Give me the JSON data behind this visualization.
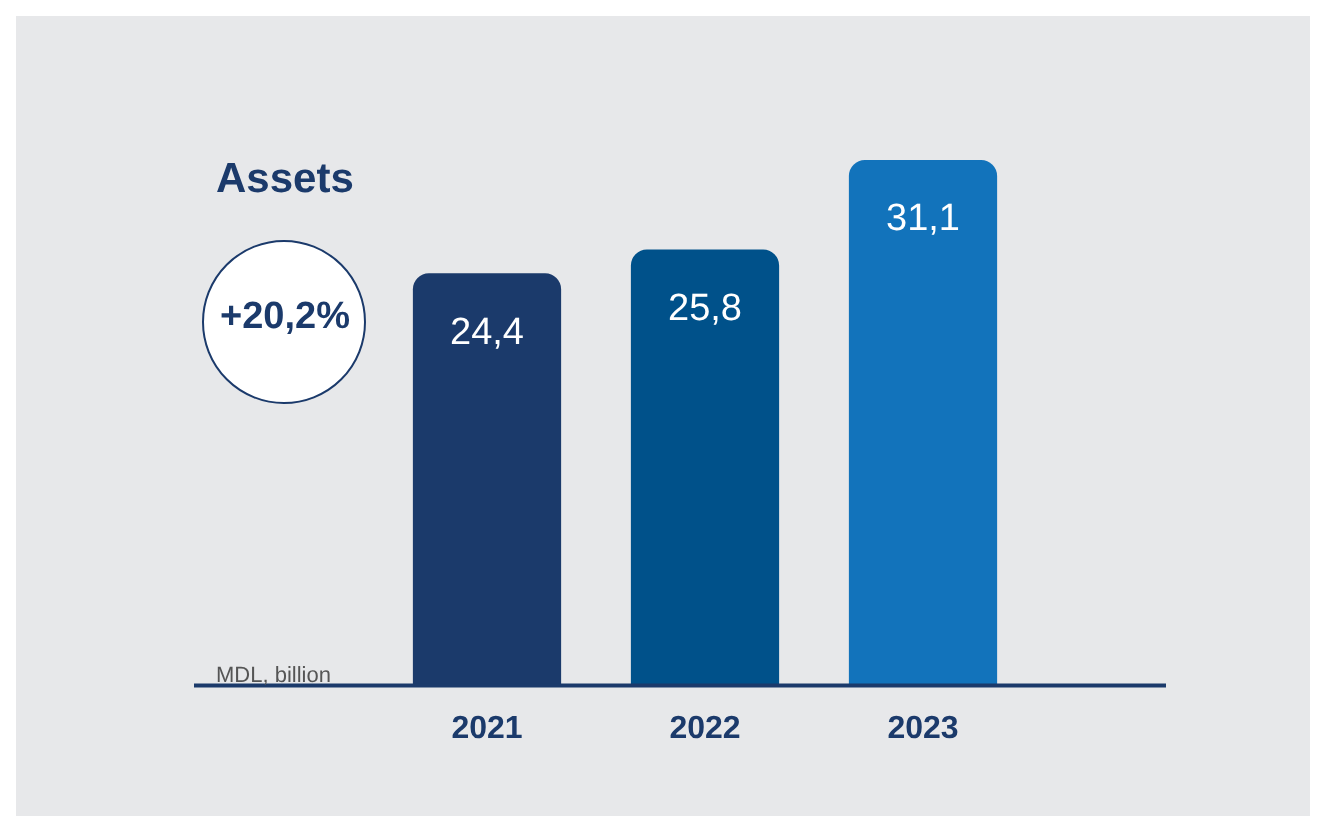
{
  "chart_data": {
    "type": "bar",
    "title": "Assets",
    "ylabel": "MDL, billion",
    "categories": [
      "2021",
      "2022",
      "2023"
    ],
    "values": [
      24.4,
      25.8,
      31.1
    ],
    "colors": [
      "#1b3a6b",
      "#00518a",
      "#1273bb"
    ],
    "value_labels": [
      "24,4",
      "25,8",
      "31,1"
    ],
    "grid": false,
    "legend": false,
    "annotations": [
      "+20,2%"
    ]
  }
}
